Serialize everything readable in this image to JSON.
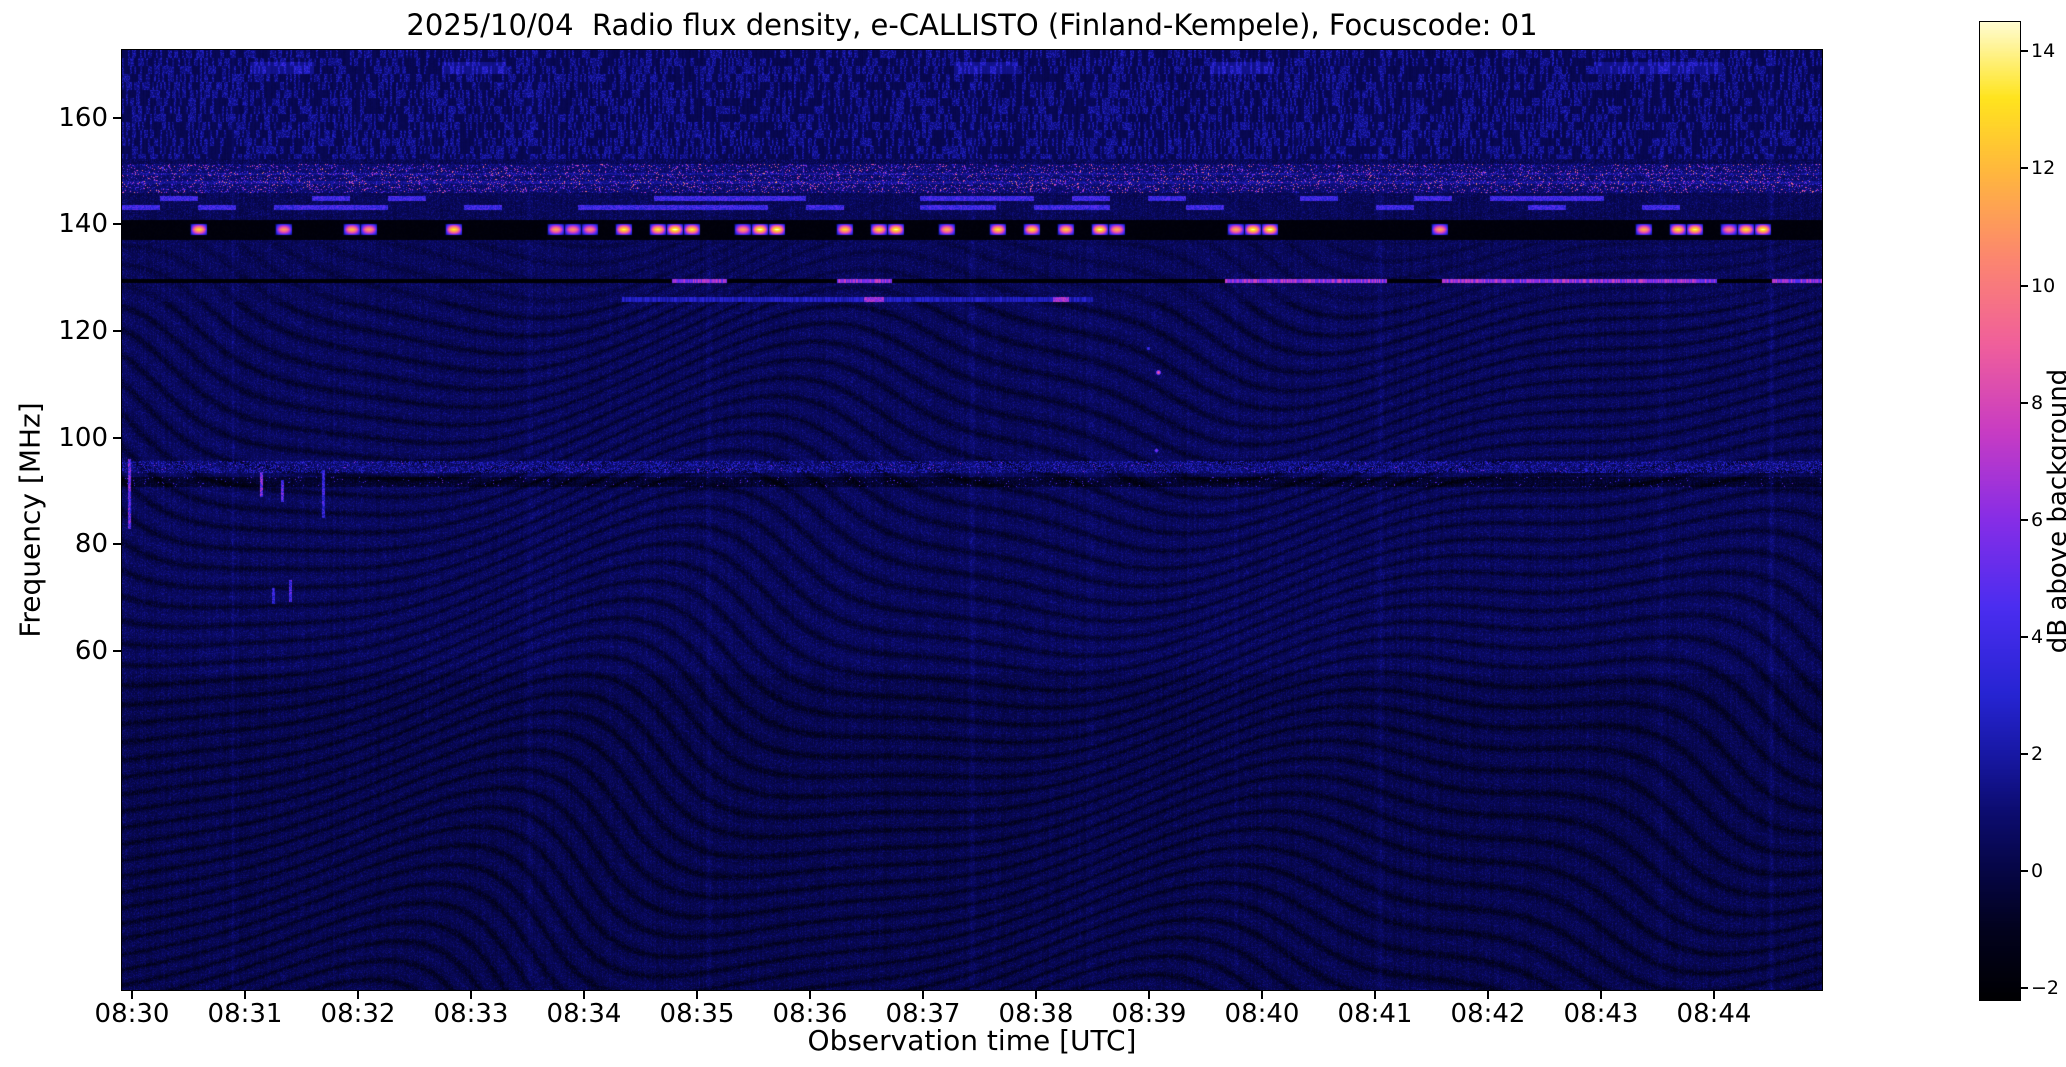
{
  "chart_data": {
    "type": "heatmap",
    "title": "2025/10/04  Radio flux density, e-CALLISTO (Finland-Kempele), Focuscode: 01",
    "xlabel": "Observation time [UTC]",
    "ylabel": "Frequency [MHz]",
    "x_ticks": [
      "08:30",
      "08:31",
      "08:32",
      "08:33",
      "08:34",
      "08:35",
      "08:36",
      "08:37",
      "08:38",
      "08:39",
      "08:40",
      "08:41",
      "08:42",
      "08:43",
      "08:44"
    ],
    "y_ticks": [
      160,
      140,
      120,
      100,
      80,
      60
    ],
    "x_range": [
      "08:29:55",
      "08:45:00"
    ],
    "y_range_mhz": [
      45,
      173
    ],
    "grid": false,
    "colorbar": {
      "label": "dB above background",
      "ticks": [
        -2,
        0,
        2,
        4,
        6,
        8,
        10,
        12,
        14
      ],
      "range_db": [
        -2.2,
        14.5
      ],
      "position": "right"
    },
    "background": {
      "mean_db": 0.4,
      "texture": "dark navy-blue background with wavy diagonal interference ripples and fine vertical speckle"
    },
    "features": [
      {
        "name": "striped-texture-band",
        "freq_range_mhz": [
          152.5,
          172.7
        ],
        "intensity_db": [
          0,
          3
        ],
        "description": "Dense vertical blue striping (RFI) across full duration in the top band"
      },
      {
        "name": "speckled-rfi-band",
        "freq_range_mhz": [
          146.3,
          151.6
        ],
        "intensity_db": [
          2,
          11
        ],
        "description": "Colorful speckled RFI band (blue/magenta/orange dots)"
      },
      {
        "name": "dashed-rfi-lines",
        "freq_range_mhz": [
          143.2,
          145.7
        ],
        "intensity_db": [
          3,
          5
        ],
        "description": "Two narrow lines of intermittent blue/violet dashes"
      },
      {
        "name": "saturated-emission-band",
        "freq_range_mhz": [
          137.6,
          141.2
        ],
        "core_mhz": 139.5,
        "intensity_db": [
          12,
          15
        ],
        "description": "Black band near 139.5 MHz with intermittent saturated yellow/white bursts over the whole observation"
      },
      {
        "name": "dark-line-130",
        "freq_mhz": 129.9,
        "bright_after": "08:39:40",
        "intensity_db": [
          5,
          9
        ],
        "description": "Narrow black line at 130 MHz; bright magenta segments after about 08:40"
      },
      {
        "name": "faint-line-126",
        "freq_mhz": 126.5,
        "time_range": [
          "08:34:20",
          "08:38:30"
        ],
        "intensity_db": [
          2,
          7
        ],
        "description": "Faint bright-blue line segment with magenta hotspots"
      },
      {
        "name": "speckled-band-95",
        "freq_range_mhz": [
          94.3,
          96.6
        ],
        "intensity_db": [
          1,
          5
        ],
        "description": "Dense blue speckled band near 95.5 MHz"
      },
      {
        "name": "dark-band-92",
        "freq_range_mhz": [
          91.8,
          93.6
        ],
        "intensity_db": [
          -2,
          0
        ],
        "description": "Darker band with sparse bright dots"
      },
      {
        "name": "streak-cluster",
        "time_range": [
          "08:30:00",
          "08:32:40"
        ],
        "freq_range_mhz": [
          70,
          97
        ],
        "intensity_db": [
          4,
          6
        ],
        "description": "Short vertical magenta streaks near the left edge"
      },
      {
        "name": "bright-dot",
        "time": "08:39:05",
        "freq_mhz": 113,
        "intensity_db": 9,
        "description": "Isolated bright pink dot"
      }
    ]
  }
}
